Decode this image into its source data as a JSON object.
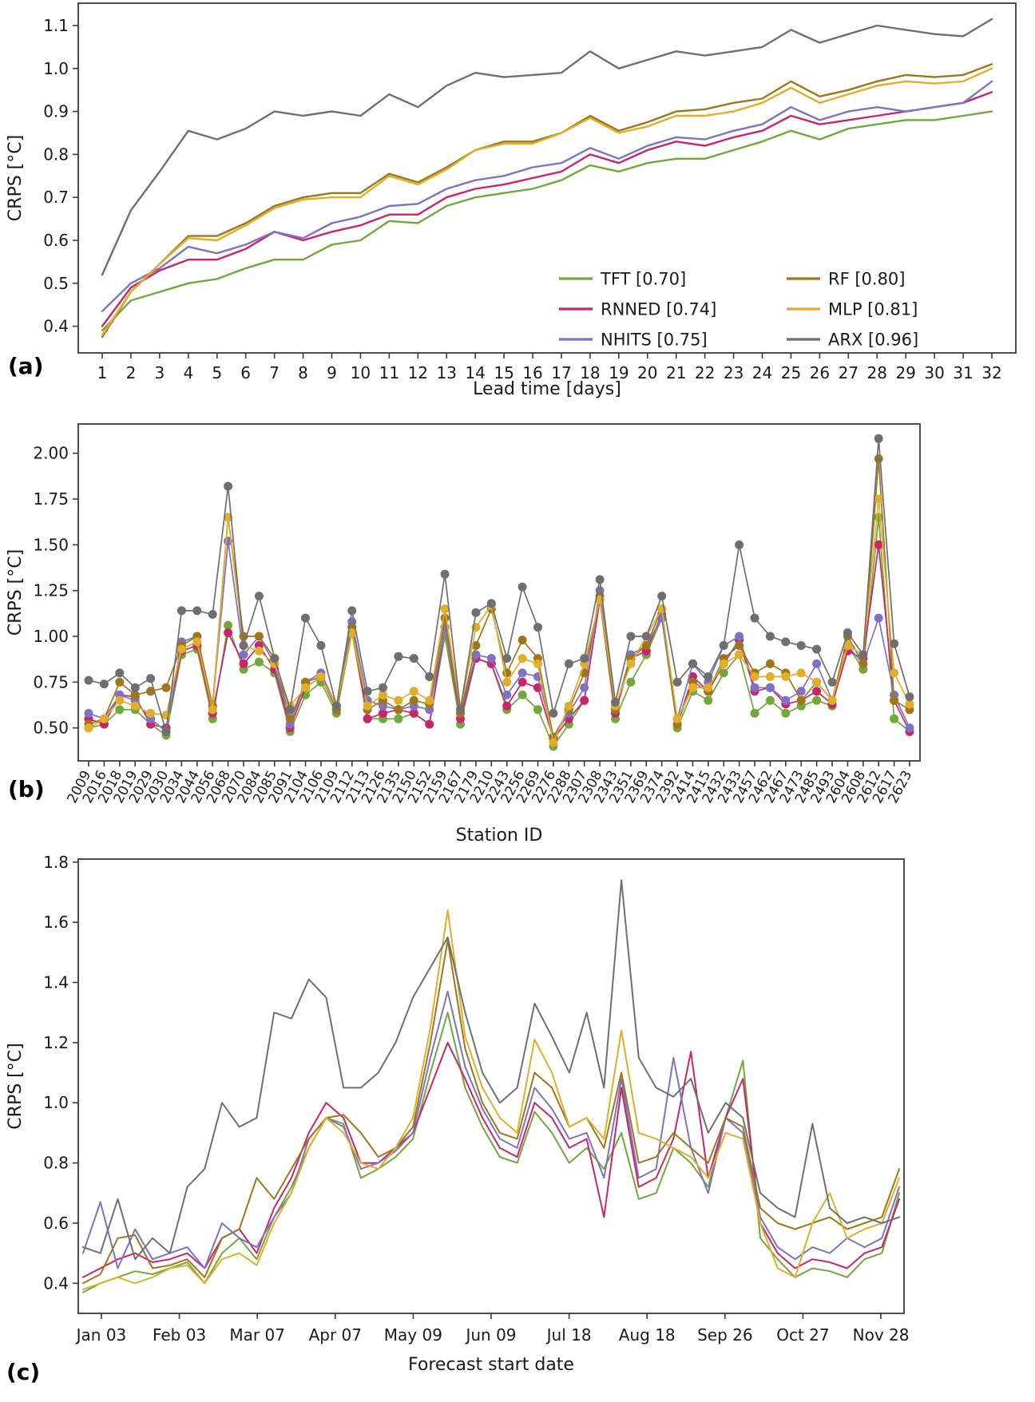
{
  "figure": {
    "background": "#ffffff",
    "text_color": "#1a1a1a",
    "spine_color": "#3a3a3a",
    "panel_labels": {
      "a": "(a)",
      "b": "(b)",
      "c": "(c)"
    }
  },
  "colors": {
    "TFT": "#71a83a",
    "RNNED": "#c9256d",
    "NHITS": "#7e72c6",
    "RF": "#a0761b",
    "MLP": "#e0ae2a",
    "ARX": "#6f6f6f"
  },
  "chart_data": [
    {
      "panel": "a",
      "type": "line",
      "title": "",
      "xlabel": "Lead time [days]",
      "ylabel": "CRPS [°C]",
      "x": [
        1,
        2,
        3,
        4,
        5,
        6,
        7,
        8,
        9,
        10,
        11,
        12,
        13,
        14,
        15,
        16,
        17,
        18,
        19,
        20,
        21,
        22,
        23,
        24,
        25,
        26,
        27,
        28,
        29,
        30,
        31,
        32
      ],
      "ylim": [
        0.338,
        1.152
      ],
      "yticks": [
        0.4,
        0.5,
        0.6,
        0.7,
        0.8,
        0.9,
        1.0,
        1.1
      ],
      "yticklabels": [
        "0.4",
        "0.5",
        "0.6",
        "0.7",
        "0.8",
        "0.9",
        "1.0",
        "1.1"
      ],
      "grid": false,
      "legend": {
        "position": "lower right",
        "columns": 2,
        "entries": [
          {
            "series": "TFT",
            "label": "TFT [0.70]"
          },
          {
            "series": "RNNED",
            "label": "RNNED [0.74]"
          },
          {
            "series": "NHITS",
            "label": "NHITS [0.75]"
          },
          {
            "series": "RF",
            "label": "RF [0.80]"
          },
          {
            "series": "MLP",
            "label": "MLP [0.81]"
          },
          {
            "series": "ARX",
            "label": "ARX [0.96]"
          }
        ]
      },
      "series": [
        {
          "name": "TFT",
          "values": [
            0.39,
            0.46,
            0.48,
            0.5,
            0.51,
            0.535,
            0.555,
            0.555,
            0.59,
            0.6,
            0.645,
            0.64,
            0.68,
            0.7,
            0.71,
            0.72,
            0.74,
            0.775,
            0.76,
            0.78,
            0.79,
            0.79,
            0.81,
            0.83,
            0.855,
            0.835,
            0.86,
            0.87,
            0.88,
            0.88,
            0.89,
            0.9
          ]
        },
        {
          "name": "RNNED",
          "values": [
            0.4,
            0.49,
            0.53,
            0.555,
            0.555,
            0.58,
            0.62,
            0.6,
            0.62,
            0.635,
            0.66,
            0.66,
            0.7,
            0.72,
            0.73,
            0.745,
            0.76,
            0.8,
            0.78,
            0.81,
            0.83,
            0.82,
            0.84,
            0.855,
            0.89,
            0.87,
            0.88,
            0.89,
            0.9,
            0.91,
            0.92,
            0.945
          ]
        },
        {
          "name": "NHITS",
          "values": [
            0.435,
            0.5,
            0.535,
            0.585,
            0.57,
            0.59,
            0.62,
            0.605,
            0.64,
            0.655,
            0.68,
            0.685,
            0.72,
            0.74,
            0.75,
            0.77,
            0.78,
            0.815,
            0.79,
            0.82,
            0.84,
            0.835,
            0.855,
            0.87,
            0.91,
            0.88,
            0.9,
            0.91,
            0.9,
            0.91,
            0.92,
            0.97
          ]
        },
        {
          "name": "RF",
          "values": [
            0.375,
            0.48,
            0.545,
            0.61,
            0.61,
            0.64,
            0.68,
            0.7,
            0.71,
            0.71,
            0.755,
            0.735,
            0.77,
            0.81,
            0.83,
            0.83,
            0.85,
            0.89,
            0.855,
            0.875,
            0.9,
            0.905,
            0.92,
            0.93,
            0.97,
            0.935,
            0.95,
            0.97,
            0.985,
            0.98,
            0.985,
            1.01
          ]
        },
        {
          "name": "MLP",
          "values": [
            0.38,
            0.48,
            0.545,
            0.605,
            0.6,
            0.635,
            0.675,
            0.695,
            0.7,
            0.7,
            0.75,
            0.73,
            0.765,
            0.81,
            0.825,
            0.825,
            0.85,
            0.885,
            0.85,
            0.865,
            0.89,
            0.89,
            0.9,
            0.92,
            0.955,
            0.92,
            0.94,
            0.96,
            0.97,
            0.965,
            0.97,
            1.0
          ]
        },
        {
          "name": "ARX",
          "values": [
            0.52,
            0.67,
            0.76,
            0.855,
            0.835,
            0.86,
            0.9,
            0.89,
            0.9,
            0.89,
            0.94,
            0.91,
            0.96,
            0.99,
            0.98,
            0.985,
            0.99,
            1.04,
            1.0,
            1.02,
            1.04,
            1.03,
            1.04,
            1.05,
            1.09,
            1.06,
            1.08,
            1.1,
            1.09,
            1.08,
            1.075,
            1.115
          ]
        }
      ]
    },
    {
      "panel": "b",
      "type": "line",
      "markers": true,
      "title": "",
      "xlabel": "Station ID",
      "ylabel": "CRPS [°C]",
      "categories": [
        "2009",
        "2016",
        "2018",
        "2019",
        "2029",
        "2030",
        "2034",
        "2044",
        "2056",
        "2068",
        "2070",
        "2084",
        "2085",
        "2091",
        "2104",
        "2106",
        "2109",
        "2112",
        "2113",
        "2126",
        "2135",
        "2150",
        "2152",
        "2159",
        "2167",
        "2179",
        "2210",
        "2243",
        "2256",
        "2269",
        "2276",
        "2288",
        "2307",
        "2308",
        "2343",
        "2351",
        "2369",
        "2374",
        "2392",
        "2414",
        "2415",
        "2432",
        "2433",
        "2457",
        "2462",
        "2467",
        "2473",
        "2485",
        "2493",
        "2604",
        "2608",
        "2612",
        "2617",
        "2623"
      ],
      "ylim": [
        0.32,
        2.16
      ],
      "yticks": [
        0.5,
        0.75,
        1.0,
        1.25,
        1.5,
        1.75,
        2.0
      ],
      "yticklabels": [
        "0.50",
        "0.75",
        "1.00",
        "1.25",
        "1.50",
        "1.75",
        "2.00"
      ],
      "grid": false,
      "series": [
        {
          "name": "TFT",
          "values": [
            0.5,
            0.52,
            0.6,
            0.6,
            0.52,
            0.46,
            0.9,
            0.93,
            0.55,
            1.06,
            0.82,
            0.86,
            0.8,
            0.48,
            0.68,
            0.75,
            0.58,
            1.02,
            0.55,
            0.55,
            0.55,
            0.58,
            0.52,
            1.0,
            0.52,
            0.88,
            0.85,
            0.6,
            0.68,
            0.6,
            0.4,
            0.52,
            0.65,
            1.2,
            0.55,
            0.75,
            0.9,
            1.1,
            0.5,
            0.7,
            0.65,
            0.8,
            0.9,
            0.58,
            0.65,
            0.58,
            0.62,
            0.65,
            0.62,
            0.95,
            0.82,
            1.65,
            0.55,
            0.48
          ]
        },
        {
          "name": "RNNED",
          "values": [
            0.55,
            0.52,
            0.68,
            0.67,
            0.52,
            0.5,
            0.92,
            0.95,
            0.58,
            1.02,
            0.85,
            0.95,
            0.82,
            0.5,
            0.72,
            0.78,
            0.6,
            1.05,
            0.55,
            0.58,
            0.6,
            0.58,
            0.52,
            1.05,
            0.55,
            0.88,
            0.85,
            0.62,
            0.75,
            0.72,
            0.44,
            0.55,
            0.65,
            1.2,
            0.58,
            0.88,
            0.92,
            1.12,
            0.52,
            0.78,
            0.7,
            0.85,
            0.98,
            0.7,
            0.72,
            0.63,
            0.65,
            0.7,
            0.63,
            0.92,
            0.88,
            1.5,
            0.65,
            0.48
          ]
        },
        {
          "name": "NHITS",
          "values": [
            0.58,
            0.55,
            0.68,
            0.65,
            0.55,
            0.48,
            0.97,
            1.0,
            0.62,
            1.52,
            0.9,
            1.0,
            0.85,
            0.52,
            0.75,
            0.8,
            0.62,
            1.08,
            0.65,
            0.62,
            0.6,
            0.62,
            0.6,
            1.05,
            0.58,
            0.9,
            0.88,
            0.68,
            0.8,
            0.78,
            0.45,
            0.58,
            0.72,
            1.25,
            0.6,
            0.9,
            0.95,
            1.1,
            0.55,
            0.85,
            0.75,
            0.95,
            1.0,
            0.72,
            0.72,
            0.65,
            0.7,
            0.85,
            0.65,
            0.95,
            0.85,
            1.1,
            0.68,
            0.5
          ]
        },
        {
          "name": "RF",
          "values": [
            0.52,
            0.55,
            0.75,
            0.68,
            0.7,
            0.72,
            0.95,
            1.0,
            0.62,
            1.65,
            1.0,
            1.0,
            0.88,
            0.55,
            0.75,
            0.78,
            0.6,
            1.05,
            0.6,
            0.65,
            0.6,
            0.65,
            0.63,
            1.1,
            0.58,
            0.95,
            1.15,
            0.8,
            0.98,
            0.88,
            0.45,
            0.6,
            0.8,
            1.22,
            0.6,
            0.88,
            0.95,
            1.15,
            0.52,
            0.75,
            0.7,
            0.88,
            0.95,
            0.8,
            0.85,
            0.8,
            0.65,
            0.75,
            0.65,
            1.0,
            0.85,
            1.97,
            0.65,
            0.6
          ]
        },
        {
          "name": "MLP",
          "values": [
            0.5,
            0.55,
            0.65,
            0.62,
            0.58,
            0.57,
            0.93,
            0.97,
            0.6,
            1.65,
            0.95,
            0.92,
            0.85,
            0.62,
            0.72,
            0.78,
            0.62,
            1.02,
            0.62,
            0.68,
            0.65,
            0.7,
            0.65,
            1.15,
            0.6,
            1.05,
            1.17,
            0.75,
            0.88,
            0.85,
            0.42,
            0.62,
            0.85,
            1.2,
            0.62,
            0.85,
            1.0,
            1.15,
            0.55,
            0.72,
            0.72,
            0.85,
            0.9,
            0.78,
            0.78,
            0.78,
            0.8,
            0.75,
            0.65,
            0.95,
            0.9,
            1.75,
            0.8,
            0.63
          ]
        },
        {
          "name": "ARX",
          "values": [
            0.76,
            0.74,
            0.8,
            0.72,
            0.77,
            0.48,
            1.14,
            1.14,
            1.12,
            1.82,
            0.95,
            1.22,
            0.88,
            0.6,
            1.1,
            0.95,
            0.62,
            1.14,
            0.7,
            0.72,
            0.89,
            0.88,
            0.78,
            1.34,
            0.6,
            1.13,
            1.18,
            0.88,
            1.27,
            1.05,
            0.58,
            0.85,
            0.88,
            1.31,
            0.64,
            1.0,
            1.0,
            1.22,
            0.75,
            0.85,
            0.78,
            0.95,
            1.5,
            1.1,
            1.0,
            0.97,
            0.95,
            0.93,
            0.75,
            1.02,
            0.9,
            2.08,
            0.96,
            0.67
          ]
        }
      ]
    },
    {
      "panel": "c",
      "type": "line",
      "title": "",
      "xlabel": "Forecast start date",
      "ylabel": "CRPS [°C]",
      "n_points": 48,
      "xticklabels": [
        "Jan 03",
        "Feb 03",
        "Mar 07",
        "Apr 07",
        "May 09",
        "Jun 09",
        "Jul 18",
        "Aug 18",
        "Sep 26",
        "Oct 27",
        "Nov 28"
      ],
      "ylim": [
        0.3,
        1.81
      ],
      "yticks": [
        0.4,
        0.6,
        0.8,
        1.0,
        1.2,
        1.4,
        1.6,
        1.8
      ],
      "yticklabels": [
        "0.4",
        "0.6",
        "0.8",
        "1.0",
        "1.2",
        "1.4",
        "1.6",
        "1.8"
      ],
      "grid": false,
      "series": [
        {
          "name": "TFT",
          "values": [
            0.37,
            0.4,
            0.42,
            0.44,
            0.43,
            0.45,
            0.47,
            0.4,
            0.5,
            0.55,
            0.48,
            0.62,
            0.72,
            0.85,
            0.95,
            0.93,
            0.75,
            0.78,
            0.82,
            0.88,
            1.1,
            1.3,
            1.05,
            0.92,
            0.82,
            0.8,
            0.97,
            0.9,
            0.8,
            0.85,
            0.78,
            0.9,
            0.68,
            0.7,
            0.85,
            0.8,
            0.72,
            0.95,
            1.14,
            0.55,
            0.48,
            0.42,
            0.45,
            0.44,
            0.42,
            0.48,
            0.5,
            0.7
          ]
        },
        {
          "name": "RNNED",
          "values": [
            0.42,
            0.45,
            0.48,
            0.5,
            0.47,
            0.48,
            0.5,
            0.45,
            0.55,
            0.58,
            0.5,
            0.65,
            0.75,
            0.9,
            1.0,
            0.95,
            0.8,
            0.8,
            0.85,
            0.9,
            1.05,
            1.2,
            1.08,
            0.95,
            0.85,
            0.82,
            1.0,
            0.95,
            0.85,
            0.88,
            0.62,
            1.05,
            0.72,
            0.75,
            0.88,
            1.17,
            0.75,
            0.95,
            1.08,
            0.6,
            0.5,
            0.45,
            0.48,
            0.47,
            0.45,
            0.5,
            0.52,
            0.68
          ]
        },
        {
          "name": "NHITS",
          "values": [
            0.5,
            0.67,
            0.45,
            0.58,
            0.48,
            0.5,
            0.52,
            0.45,
            0.6,
            0.55,
            0.52,
            0.62,
            0.7,
            0.88,
            0.95,
            0.92,
            0.78,
            0.8,
            0.84,
            0.9,
            1.15,
            1.37,
            1.12,
            0.98,
            0.88,
            0.85,
            1.05,
            0.98,
            0.88,
            0.9,
            0.75,
            1.08,
            0.75,
            0.78,
            1.15,
            0.85,
            0.7,
            0.95,
            0.9,
            0.62,
            0.52,
            0.48,
            0.52,
            0.5,
            0.55,
            0.52,
            0.55,
            0.72
          ]
        },
        {
          "name": "RF",
          "values": [
            0.4,
            0.43,
            0.55,
            0.56,
            0.45,
            0.46,
            0.48,
            0.42,
            0.55,
            0.58,
            0.75,
            0.68,
            0.78,
            0.88,
            0.95,
            0.96,
            0.9,
            0.82,
            0.85,
            0.92,
            1.2,
            1.54,
            1.18,
            1.0,
            0.9,
            0.88,
            1.1,
            1.05,
            0.92,
            0.95,
            0.85,
            1.1,
            0.8,
            0.82,
            0.9,
            0.85,
            0.8,
            0.95,
            0.92,
            0.65,
            0.6,
            0.58,
            0.6,
            0.62,
            0.58,
            0.6,
            0.62,
            0.78
          ]
        },
        {
          "name": "MLP",
          "values": [
            0.38,
            0.4,
            0.42,
            0.4,
            0.42,
            0.45,
            0.46,
            0.4,
            0.48,
            0.5,
            0.46,
            0.6,
            0.7,
            0.85,
            0.95,
            0.9,
            0.8,
            0.78,
            0.85,
            0.95,
            1.25,
            1.64,
            1.22,
            1.05,
            0.95,
            0.9,
            1.21,
            1.1,
            0.92,
            0.95,
            0.88,
            1.24,
            0.9,
            0.88,
            0.85,
            0.82,
            0.75,
            0.9,
            0.88,
            0.6,
            0.45,
            0.42,
            0.6,
            0.7,
            0.55,
            0.58,
            0.6,
            0.75
          ]
        },
        {
          "name": "ARX",
          "values": [
            0.52,
            0.5,
            0.68,
            0.48,
            0.55,
            0.5,
            0.72,
            0.78,
            1.0,
            0.92,
            0.95,
            1.3,
            1.28,
            1.41,
            1.35,
            1.05,
            1.05,
            1.1,
            1.2,
            1.35,
            1.45,
            1.55,
            1.3,
            1.1,
            1.0,
            1.05,
            1.33,
            1.22,
            1.1,
            1.3,
            1.05,
            1.74,
            1.15,
            1.05,
            1.02,
            1.08,
            0.9,
            1.0,
            0.95,
            0.7,
            0.65,
            0.62,
            0.93,
            0.65,
            0.6,
            0.62,
            0.6,
            0.62
          ]
        }
      ]
    }
  ]
}
